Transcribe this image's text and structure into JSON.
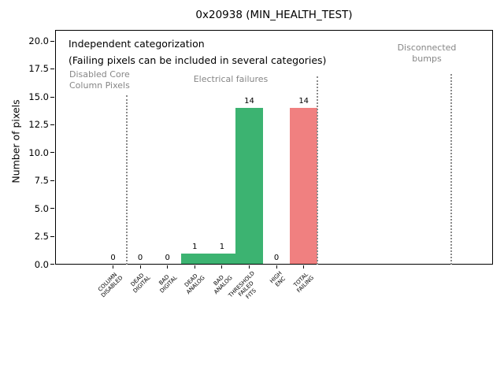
{
  "window": {
    "title": "0x20938 (MIN_HEALTH_TEST)"
  },
  "chart_data": {
    "type": "bar",
    "title": "0x20938 (MIN_HEALTH_TEST)",
    "xlabel": "",
    "ylabel": "Number of pixels",
    "categories": [
      "COLUMN\nDISABLED",
      "DEAD\nDIGITAL",
      "BAD\nDIGITAL",
      "DEAD\nANALOG",
      "BAD\nANALOG",
      "THRESHOLD\nFAILED\nFITS",
      "HIGH\nENC",
      "TOTAL\nFAILING"
    ],
    "values": [
      0,
      0,
      0,
      1,
      1,
      14,
      0,
      14
    ],
    "value_labels": [
      "0",
      "0",
      "0",
      "1",
      "1",
      "14",
      "0",
      "14"
    ],
    "bar_colors": [
      "#3cb371",
      "#3cb371",
      "#3cb371",
      "#3cb371",
      "#3cb371",
      "#3cb371",
      "#3cb371",
      "#f08080"
    ],
    "yticks": [
      "0.0",
      "2.5",
      "5.0",
      "7.5",
      "10.0",
      "12.5",
      "15.0",
      "17.5",
      "20.0"
    ],
    "ylim": [
      0,
      21
    ],
    "grid": false,
    "legend": null,
    "annotations": {
      "line1": "Independent categorization",
      "line2": "(Failing pixels can be included in several categories)"
    },
    "groups": [
      {
        "label": "Disabled Core\nColumn Pixels"
      },
      {
        "label": "Electrical failures"
      },
      {
        "label": "Disconnected\nbumps"
      }
    ],
    "separator_positions_units": [
      0.5,
      7.5,
      12.4
    ]
  },
  "colors": {
    "pass_bar": "#3cb371",
    "fail_bar": "#f08080",
    "muted_text": "#868686",
    "separator": "#8a8a8a"
  }
}
